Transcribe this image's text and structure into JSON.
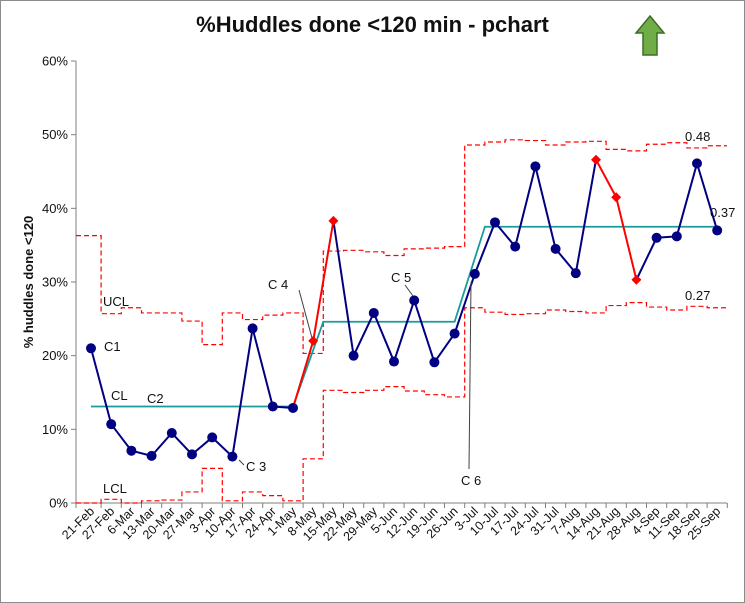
{
  "title": "%Huddles done <120 min - pchart",
  "colors": {
    "series": "#000080",
    "special_cause": "#ff0000",
    "center_line": "#1a9a9a",
    "limits": "#ff0000",
    "arrow_fill": "#70ad47",
    "arrow_stroke": "#3b6e24"
  },
  "chart_data": {
    "type": "line",
    "title": "%Huddles done <120 min - pchart",
    "ylabel": "% huddles done <120",
    "xlabel": "",
    "ylim": [
      0,
      0.6
    ],
    "y_ticks": [
      0,
      0.1,
      0.2,
      0.3,
      0.4,
      0.5,
      0.6
    ],
    "y_tick_labels": [
      "0%",
      "10%",
      "20%",
      "30%",
      "40%",
      "50%",
      "60%"
    ],
    "grid": false,
    "categories": [
      "21-Feb",
      "27-Feb",
      "6-Mar",
      "13-Mar",
      "20-Mar",
      "27-Mar",
      "3-Apr",
      "10-Apr",
      "17-Apr",
      "24-Apr",
      "1-May",
      "8-May",
      "15-May",
      "22-May",
      "29-May",
      "5-Jun",
      "12-Jun",
      "19-Jun",
      "26-Jun",
      "3-Jul",
      "10-Jul",
      "17-Jul",
      "24-Jul",
      "31-Jul",
      "7-Aug",
      "14-Aug",
      "21-Aug",
      "28-Aug",
      "4-Sep",
      "11-Sep",
      "18-Sep",
      "25-Sep"
    ],
    "series": [
      {
        "values": [
          0.21,
          0.107,
          0.071,
          0.064,
          0.095,
          0.066,
          0.089,
          0.063,
          0.237,
          0.131,
          0.129,
          0.22,
          0.383,
          0.2,
          0.258,
          0.192,
          0.275,
          0.191,
          0.23,
          0.311,
          0.381,
          0.348,
          0.457,
          0.345,
          0.312,
          0.466,
          0.415,
          0.303,
          0.36,
          0.362,
          0.461,
          0.37
        ],
        "special_cause_indices": [
          11,
          12,
          25,
          26,
          27
        ]
      }
    ],
    "center_line": {
      "label": "CL",
      "segments": [
        {
          "from": "21-Feb",
          "to": "1-May",
          "value": 0.131
        },
        {
          "from": "15-May",
          "to": "26-Jun",
          "value": 0.246
        },
        {
          "from": "10-Jul",
          "to": "25-Sep",
          "value": 0.375
        }
      ]
    },
    "ucl": {
      "label": "UCL",
      "values": [
        0.363,
        0.257,
        0.265,
        0.258,
        0.258,
        0.247,
        0.215,
        0.258,
        0.249,
        0.255,
        0.258,
        0.203,
        0.342,
        0.343,
        0.341,
        0.336,
        0.345,
        0.346,
        0.348,
        0.486,
        0.49,
        0.493,
        0.492,
        0.486,
        0.49,
        0.491,
        0.48,
        0.478,
        0.487,
        0.489,
        0.482,
        0.485
      ]
    },
    "lcl": {
      "label": "LCL",
      "values": [
        0.0,
        0.005,
        0.0,
        0.003,
        0.004,
        0.015,
        0.047,
        0.003,
        0.015,
        0.01,
        0.003,
        0.06,
        0.153,
        0.15,
        0.153,
        0.158,
        0.152,
        0.147,
        0.144,
        0.265,
        0.259,
        0.256,
        0.257,
        0.262,
        0.26,
        0.258,
        0.268,
        0.272,
        0.266,
        0.262,
        0.267,
        0.265
      ]
    },
    "annotations": [
      {
        "text": "C1",
        "index": 0
      },
      {
        "text": "C2",
        "index": 3
      },
      {
        "text": "C 3",
        "index": 7
      },
      {
        "text": "C 4",
        "index": 11
      },
      {
        "text": "C 5",
        "index": 16
      },
      {
        "text": "C 6",
        "index": 19
      }
    ],
    "value_labels": {
      "ucl": "0.48",
      "cl": "0.37",
      "lcl": "0.27"
    }
  }
}
